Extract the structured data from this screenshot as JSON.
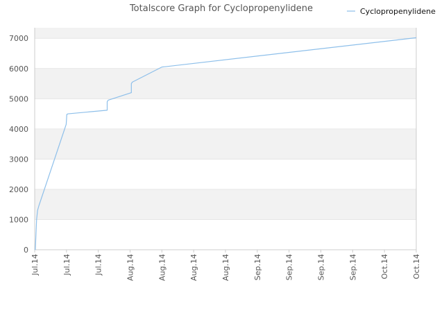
{
  "chart_data": {
    "type": "line",
    "title": "Totalscore Graph for Cyclopropenylidene",
    "xlabel": "",
    "ylabel": "",
    "ylim": [
      0,
      7350
    ],
    "yticks": [
      0,
      1000,
      2000,
      3000,
      4000,
      5000,
      6000,
      7000
    ],
    "xticks": [
      "Jul.14",
      "Jul.14",
      "Jul.14",
      "Aug.14",
      "Aug.14",
      "Aug.14",
      "Aug.14",
      "Sep.14",
      "Sep.14",
      "Sep.14",
      "Sep.14",
      "Oct.14",
      "Oct.14"
    ],
    "x_range_index": [
      0,
      12
    ],
    "grid": "horizontal bands",
    "legend": "top-right",
    "colors": {
      "line": "#8dbfea",
      "band": "#f2f2f2",
      "grid": "#e6e6e6",
      "axis": "#cccccc"
    },
    "series": [
      {
        "name": "Cyclopropenylidene",
        "x": [
          0.0,
          0.02,
          0.06,
          0.09,
          0.13,
          0.99,
          1.0,
          1.01,
          1.05,
          2.28,
          2.28,
          2.31,
          3.04,
          3.04,
          3.07,
          4.0,
          4.1,
          12.0
        ],
        "y": [
          0,
          10,
          1000,
          1300,
          1450,
          4150,
          4300,
          4480,
          4500,
          4620,
          4900,
          4950,
          5200,
          5500,
          5550,
          6050,
          6060,
          7020
        ]
      }
    ]
  }
}
